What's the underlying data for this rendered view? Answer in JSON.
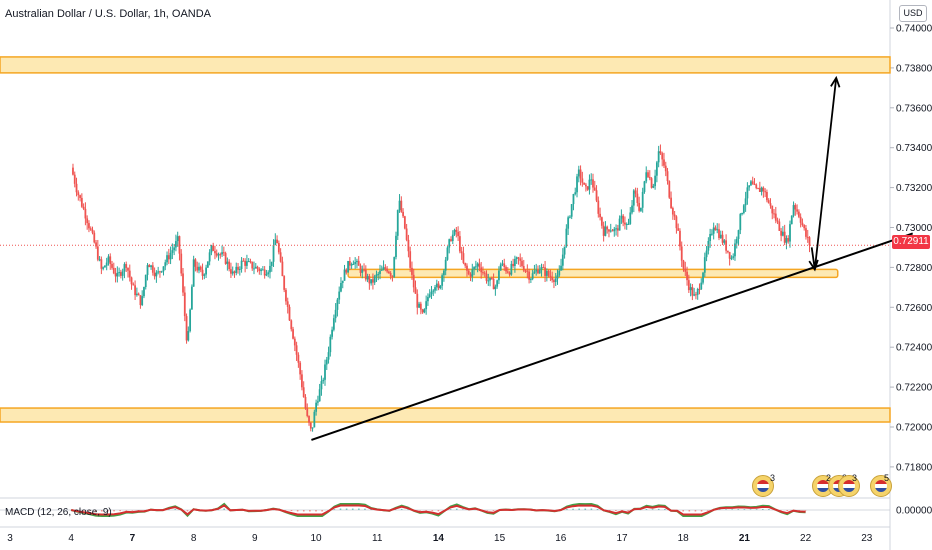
{
  "header": {
    "title": "Australian Dollar / U.S. Dollar, 1h, OANDA",
    "currency_badge": "USD",
    "last_price": "0.72911"
  },
  "macd": {
    "label": "MACD (12, 26, close, 9)",
    "zero_label": "0.00000"
  },
  "events": [
    {
      "count": "3"
    },
    {
      "count": "2"
    },
    {
      "count": "3"
    },
    {
      "count": "3"
    },
    {
      "count": "5"
    }
  ],
  "colors": {
    "up": "#26a69a",
    "down": "#ef5350",
    "zone_fill": "#fde9b3",
    "zone_border": "#f5a623",
    "trendline": "#000000",
    "macd_line": "#2962ff",
    "signal_line": "#d32f2f"
  },
  "chart_data": {
    "type": "candlestick",
    "title": "Australian Dollar / U.S. Dollar, 1h, OANDA",
    "y_ticks": [
      "0.74000",
      "0.73800",
      "0.73600",
      "0.73400",
      "0.73200",
      "0.73000",
      "0.72800",
      "0.72600",
      "0.72400",
      "0.72200",
      "0.72000",
      "0.71800"
    ],
    "x_ticks": [
      "3",
      "4",
      "7",
      "8",
      "9",
      "10",
      "11",
      "14",
      "15",
      "16",
      "17",
      "18",
      "21",
      "22",
      "23"
    ],
    "ylim": [
      0.7175,
      0.741
    ],
    "close_path": [
      [
        2.0,
        0.733
      ],
      [
        2.2,
        0.7318
      ],
      [
        2.5,
        0.7305
      ],
      [
        2.8,
        0.729
      ],
      [
        3.0,
        0.7278
      ],
      [
        3.2,
        0.7284
      ],
      [
        3.5,
        0.7275
      ],
      [
        3.8,
        0.7282
      ],
      [
        4.0,
        0.727
      ],
      [
        4.3,
        0.7262
      ],
      [
        4.5,
        0.7283
      ],
      [
        4.8,
        0.7276
      ],
      [
        5.2,
        0.7286
      ],
      [
        5.5,
        0.7294
      ],
      [
        5.8,
        0.724
      ],
      [
        6.0,
        0.7282
      ],
      [
        6.3,
        0.7276
      ],
      [
        6.6,
        0.729
      ],
      [
        7.0,
        0.7285
      ],
      [
        7.3,
        0.7276
      ],
      [
        7.6,
        0.7283
      ],
      [
        8.0,
        0.728
      ],
      [
        8.3,
        0.7278
      ],
      [
        8.5,
        0.728
      ],
      [
        8.7,
        0.7296
      ],
      [
        8.9,
        0.7275
      ],
      [
        9.1,
        0.7258
      ],
      [
        9.3,
        0.7242
      ],
      [
        9.5,
        0.7225
      ],
      [
        9.7,
        0.7205
      ],
      [
        9.85,
        0.7197
      ],
      [
        10.0,
        0.7212
      ],
      [
        10.2,
        0.7222
      ],
      [
        10.4,
        0.7238
      ],
      [
        10.6,
        0.7258
      ],
      [
        10.8,
        0.7272
      ],
      [
        11.0,
        0.728
      ],
      [
        11.2,
        0.7284
      ],
      [
        11.5,
        0.7278
      ],
      [
        11.8,
        0.7272
      ],
      [
        12.0,
        0.7276
      ],
      [
        12.3,
        0.728
      ],
      [
        12.5,
        0.7276
      ],
      [
        12.7,
        0.7314
      ],
      [
        12.9,
        0.73
      ],
      [
        13.1,
        0.7278
      ],
      [
        13.3,
        0.7262
      ],
      [
        13.5,
        0.7255
      ],
      [
        13.7,
        0.7268
      ],
      [
        13.9,
        0.7272
      ],
      [
        14.0,
        0.7268
      ],
      [
        14.2,
        0.7282
      ],
      [
        14.4,
        0.7295
      ],
      [
        14.6,
        0.7298
      ],
      [
        14.8,
        0.7282
      ],
      [
        15.0,
        0.7276
      ],
      [
        15.3,
        0.7282
      ],
      [
        15.6,
        0.7274
      ],
      [
        15.9,
        0.727
      ],
      [
        16.0,
        0.7282
      ],
      [
        16.3,
        0.7278
      ],
      [
        16.6,
        0.7284
      ],
      [
        16.9,
        0.7278
      ],
      [
        17.0,
        0.7275
      ],
      [
        17.3,
        0.728
      ],
      [
        17.6,
        0.7276
      ],
      [
        17.9,
        0.7274
      ],
      [
        18.0,
        0.728
      ],
      [
        18.2,
        0.73
      ],
      [
        18.4,
        0.7315
      ],
      [
        18.6,
        0.7328
      ],
      [
        18.8,
        0.7318
      ],
      [
        19.0,
        0.7325
      ],
      [
        19.2,
        0.731
      ],
      [
        19.4,
        0.7298
      ],
      [
        19.6,
        0.73
      ],
      [
        19.8,
        0.7298
      ],
      [
        20.0,
        0.7305
      ],
      [
        20.2,
        0.73
      ],
      [
        20.4,
        0.7318
      ],
      [
        20.6,
        0.7308
      ],
      [
        20.8,
        0.733
      ],
      [
        21.0,
        0.732
      ],
      [
        21.2,
        0.7338
      ],
      [
        21.4,
        0.733
      ],
      [
        21.6,
        0.7312
      ],
      [
        21.8,
        0.73
      ],
      [
        22.0,
        0.728
      ],
      [
        22.2,
        0.727
      ],
      [
        22.4,
        0.7264
      ],
      [
        22.6,
        0.7275
      ],
      [
        22.8,
        0.729
      ],
      [
        23.0,
        0.7302
      ],
      [
        23.2,
        0.7296
      ],
      [
        23.4,
        0.729
      ],
      [
        23.6,
        0.7284
      ],
      [
        23.8,
        0.73
      ],
      [
        24.0,
        0.7314
      ],
      [
        24.2,
        0.7322
      ],
      [
        24.4,
        0.7318
      ],
      [
        24.6,
        0.732
      ],
      [
        24.8,
        0.7312
      ],
      [
        25.0,
        0.7305
      ],
      [
        25.2,
        0.7298
      ],
      [
        25.4,
        0.7292
      ],
      [
        25.6,
        0.7312
      ],
      [
        25.8,
        0.7306
      ],
      [
        26.0,
        0.7296
      ],
      [
        26.15,
        0.7291
      ]
    ],
    "zones": [
      {
        "from": 0.73775,
        "to": 0.73855
      },
      {
        "from": 0.72025,
        "to": 0.72095
      },
      {
        "from": 0.7275,
        "to": 0.7279,
        "x_from": 11.05,
        "x_to": 27.05
      }
    ],
    "trendline": [
      [
        9.85,
        0.71935
      ],
      [
        29.5,
        0.7297
      ]
    ],
    "projection_arrow": [
      [
        26.2,
        0.729
      ],
      [
        26.3,
        0.7279
      ],
      [
        27.0,
        0.7375
      ]
    ]
  }
}
